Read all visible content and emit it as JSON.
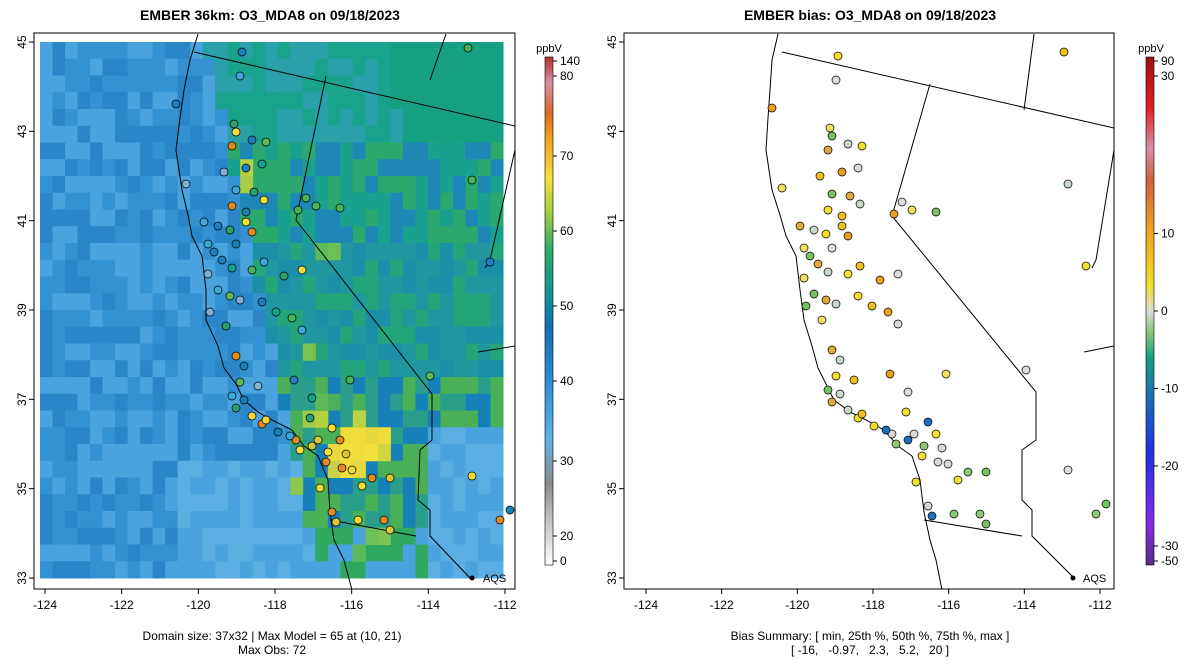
{
  "left_panel": {
    "title": "EMBER 36km: O3_MDA8 on 09/18/2023",
    "footer_line1": "Domain size: 37x32 | Max Model = 65 at (10, 21)",
    "footer_line2": "Max Obs: 72",
    "colorbar": {
      "unit": "ppbV",
      "ticks": [
        "140",
        "80",
        "70",
        "60",
        "50",
        "40",
        "30",
        "20",
        "0"
      ],
      "stops": [
        "#ffffff",
        "#8c8c8c",
        "#3ea0dc",
        "#1473b4",
        "#11a08c",
        "#6ec24a",
        "#f4e03a",
        "#f0a020",
        "#d46a30",
        "#d890a8",
        "#b03030"
      ]
    },
    "legend_label": "AQS"
  },
  "right_panel": {
    "title": "EMBER bias: O3_MDA8 on 09/18/2023",
    "footer_line1": "Bias Summary: [ min, 25th %, 50th %, 75th %, max ]",
    "footer_line2": "[ -16,   -0.97,   2.3,   5.2,   20 ]",
    "colorbar": {
      "unit": "ppbV",
      "ticks": [
        "90",
        "30",
        "10",
        "0",
        "-10",
        "-20",
        "-30",
        "-50"
      ],
      "stops": [
        "#5a2a8a",
        "#8a2be2",
        "#2030e0",
        "#1c6fb8",
        "#18a080",
        "#78c060",
        "#d8d8d8",
        "#f0e030",
        "#f0a020",
        "#d06040",
        "#d890a8",
        "#e02020",
        "#a01010"
      ]
    },
    "legend_label": "AQS"
  },
  "axes": {
    "x_ticks": [
      "-124",
      "-122",
      "-120",
      "-118",
      "-116",
      "-114",
      "-112"
    ],
    "y_ticks": [
      "45",
      "43",
      "41",
      "39",
      "37",
      "35",
      "33"
    ]
  },
  "colors": {
    "ocean_blue": "#4aa3de",
    "deep_blue": "#1d7fc3",
    "teal": "#13a38a",
    "green": "#48b45a",
    "yellow": "#f0dc3a",
    "orange": "#e48a22"
  }
}
